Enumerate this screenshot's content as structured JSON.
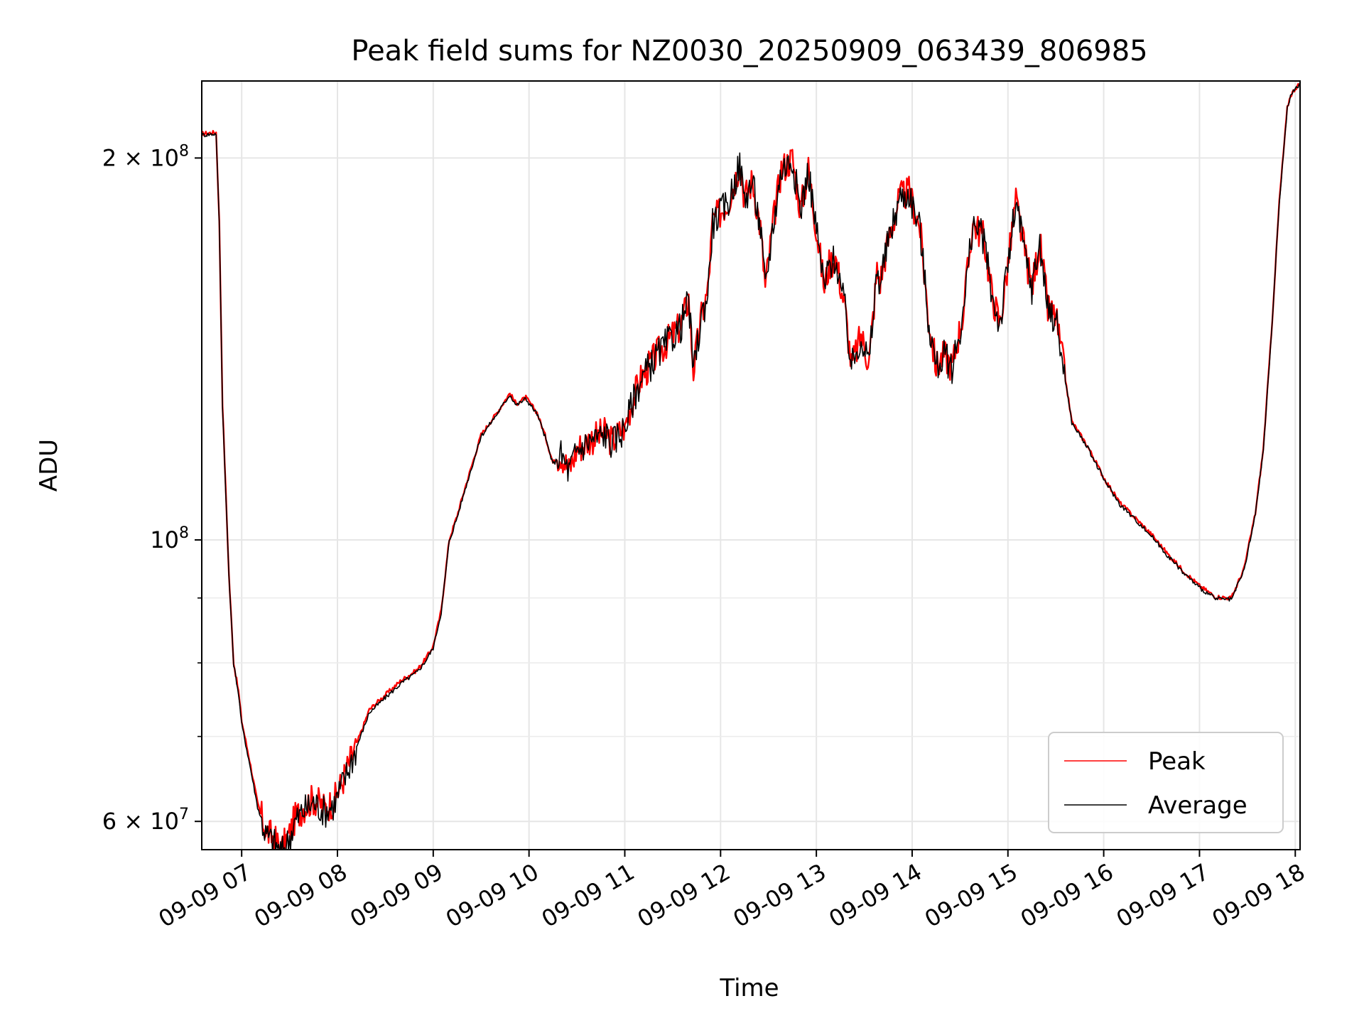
{
  "chart_data": {
    "type": "line",
    "title": "Peak field sums for NZ0030_20250909_063439_806985",
    "xlabel": "Time",
    "ylabel": "ADU",
    "yscale": "log",
    "xlim": [
      "2025-09-09 06:35",
      "2025-09-09 18:03"
    ],
    "ylim": [
      57000000,
      230000000
    ],
    "x_ticks": [
      "09-09 07",
      "09-09 08",
      "09-09 09",
      "09-09 10",
      "09-09 11",
      "09-09 12",
      "09-09 13",
      "09-09 14",
      "09-09 15",
      "09-09 16",
      "09-09 17",
      "09-09 18"
    ],
    "y_ticks": [
      {
        "value": 200000000,
        "base": "2 × 10",
        "exp": "8"
      },
      {
        "value": 100000000,
        "base": "10",
        "exp": "8"
      },
      {
        "value": 60000000,
        "base": "6 × 10",
        "exp": "7"
      }
    ],
    "y_minor_ticks": [
      70000000,
      80000000,
      90000000
    ],
    "grid": true,
    "legend_position": "lower-right",
    "series_colors": {
      "Peak": "#ff0000",
      "Average": "#000000"
    },
    "series": [
      {
        "name": "Peak",
        "x": [
          "06:35",
          "06:44",
          "06:46",
          "06:48",
          "06:52",
          "06:55",
          "06:58",
          "07:00",
          "07:05",
          "07:10",
          "07:15",
          "07:20",
          "07:25",
          "07:28",
          "07:30",
          "07:33",
          "07:38",
          "07:45",
          "07:52",
          "07:58",
          "08:03",
          "08:10",
          "08:20",
          "08:30",
          "08:40",
          "08:50",
          "08:55",
          "09:00",
          "09:05",
          "09:10",
          "09:15",
          "09:20",
          "09:30",
          "09:40",
          "09:48",
          "09:52",
          "09:58",
          "10:05",
          "10:10",
          "10:15",
          "10:20",
          "10:25",
          "10:30",
          "10:38",
          "10:48",
          "10:52",
          "11:00",
          "11:05",
          "11:10",
          "11:15",
          "11:20",
          "11:28",
          "11:35",
          "11:40",
          "11:43",
          "11:48",
          "11:52",
          "11:55",
          "12:05",
          "12:12",
          "12:15",
          "12:20",
          "12:25",
          "12:28",
          "12:33",
          "12:38",
          "12:45",
          "12:50",
          "12:55",
          "13:00",
          "13:05",
          "13:08",
          "13:12",
          "13:18",
          "13:22",
          "13:28",
          "13:33",
          "13:38",
          "13:40",
          "13:45",
          "13:52",
          "13:58",
          "14:05",
          "14:10",
          "14:15",
          "14:20",
          "14:25",
          "14:32",
          "14:38",
          "14:45",
          "14:50",
          "14:55",
          "15:00",
          "15:05",
          "15:10",
          "15:15",
          "15:20",
          "15:25",
          "15:30",
          "15:40",
          "15:50",
          "16:00",
          "16:10",
          "16:20",
          "16:30",
          "16:40",
          "16:50",
          "17:00",
          "17:10",
          "17:20",
          "17:28",
          "17:35",
          "17:40",
          "17:45",
          "17:50",
          "17:55",
          "17:57",
          "18:00",
          "18:03"
        ],
        "values": [
          209000000,
          209500000,
          178000000,
          128000000,
          94000000,
          80000000,
          76000000,
          72000000,
          67000000,
          62000000,
          59000000,
          58200000,
          57000000,
          58000000,
          58600000,
          60200000,
          61500000,
          62500000,
          61500000,
          62300000,
          64500000,
          68000000,
          73500000,
          75500000,
          77500000,
          79000000,
          80500000,
          82500000,
          88000000,
          100000000,
          104500000,
          110000000,
          121000000,
          126000000,
          130500000,
          128000000,
          129500000,
          126000000,
          121000000,
          115000000,
          117000000,
          113500000,
          118000000,
          120000000,
          121500000,
          119500000,
          123000000,
          129000000,
          134000000,
          137000000,
          140000000,
          144000000,
          147500000,
          155000000,
          136000000,
          150000000,
          157000000,
          178000000,
          185000000,
          198000000,
          186000000,
          192000000,
          176000000,
          158000000,
          178000000,
          196000000,
          200000000,
          182000000,
          196000000,
          176000000,
          158000000,
          165000000,
          167000000,
          152000000,
          137000000,
          145000000,
          138000000,
          163000000,
          160000000,
          172000000,
          186000000,
          188000000,
          176000000,
          150000000,
          137000000,
          140000000,
          137000000,
          151000000,
          178000000,
          173000000,
          156000000,
          148000000,
          165000000,
          185000000,
          170000000,
          158000000,
          172000000,
          152000000,
          150000000,
          124000000,
          118500000,
          112000000,
          107000000,
          104000000,
          101000000,
          97500000,
          94500000,
          92000000,
          90200000,
          90000000,
          95000000,
          105000000,
          118000000,
          145000000,
          185000000,
          219000000,
          224000000,
          227000000,
          229000000
        ]
      },
      {
        "name": "Average",
        "x": [
          "06:35",
          "06:44",
          "06:46",
          "06:48",
          "06:52",
          "06:55",
          "06:58",
          "07:00",
          "07:05",
          "07:10",
          "07:15",
          "07:20",
          "07:25",
          "07:28",
          "07:30",
          "07:33",
          "07:38",
          "07:45",
          "07:52",
          "07:58",
          "08:03",
          "08:10",
          "08:20",
          "08:30",
          "08:40",
          "08:50",
          "08:55",
          "09:00",
          "09:05",
          "09:10",
          "09:15",
          "09:20",
          "09:30",
          "09:40",
          "09:48",
          "09:52",
          "09:58",
          "10:05",
          "10:10",
          "10:15",
          "10:20",
          "10:25",
          "10:30",
          "10:38",
          "10:48",
          "10:52",
          "11:00",
          "11:05",
          "11:10",
          "11:15",
          "11:20",
          "11:28",
          "11:35",
          "11:40",
          "11:43",
          "11:48",
          "11:52",
          "11:55",
          "12:05",
          "12:12",
          "12:15",
          "12:20",
          "12:25",
          "12:28",
          "12:33",
          "12:38",
          "12:45",
          "12:50",
          "12:55",
          "13:00",
          "13:05",
          "13:08",
          "13:12",
          "13:18",
          "13:22",
          "13:28",
          "13:33",
          "13:38",
          "13:40",
          "13:45",
          "13:52",
          "13:58",
          "14:05",
          "14:10",
          "14:15",
          "14:20",
          "14:25",
          "14:32",
          "14:38",
          "14:45",
          "14:50",
          "14:55",
          "15:00",
          "15:05",
          "15:10",
          "15:15",
          "15:20",
          "15:25",
          "15:30",
          "15:40",
          "15:50",
          "16:00",
          "16:10",
          "16:20",
          "16:30",
          "16:40",
          "16:50",
          "17:00",
          "17:10",
          "17:20",
          "17:28",
          "17:35",
          "17:40",
          "17:45",
          "17:50",
          "17:55",
          "17:57",
          "18:00",
          "18:03"
        ],
        "values": [
          208500000,
          209000000,
          177500000,
          127500000,
          93800000,
          79800000,
          75700000,
          71600000,
          66600000,
          61600000,
          58600000,
          57800000,
          56700000,
          57600000,
          58200000,
          59800000,
          61100000,
          62100000,
          61100000,
          61900000,
          64100000,
          67600000,
          73100000,
          75100000,
          77100000,
          78700000,
          80200000,
          82200000,
          87700000,
          99700000,
          104200000,
          109700000,
          120700000,
          125700000,
          130200000,
          127700000,
          129200000,
          125700000,
          120700000,
          114700000,
          116700000,
          113200000,
          117700000,
          119700000,
          121200000,
          119200000,
          122700000,
          128700000,
          133700000,
          136700000,
          139700000,
          143700000,
          147200000,
          154700000,
          135700000,
          149700000,
          156700000,
          177700000,
          184700000,
          197700000,
          185700000,
          191700000,
          175700000,
          157700000,
          177700000,
          195700000,
          199700000,
          181700000,
          195700000,
          175700000,
          157700000,
          164700000,
          166700000,
          151700000,
          136700000,
          144700000,
          137700000,
          162700000,
          159700000,
          171700000,
          185700000,
          187700000,
          175700000,
          149700000,
          136700000,
          139700000,
          136700000,
          150700000,
          177700000,
          172700000,
          155700000,
          147700000,
          164700000,
          184700000,
          169700000,
          157700000,
          171700000,
          151700000,
          149700000,
          123700000,
          118200000,
          111700000,
          106700000,
          103700000,
          100700000,
          97200000,
          94200000,
          91700000,
          89900000,
          89700000,
          94700000,
          104700000,
          117700000,
          144700000,
          184700000,
          218700000,
          223700000,
          226700000,
          228700000
        ]
      }
    ]
  }
}
